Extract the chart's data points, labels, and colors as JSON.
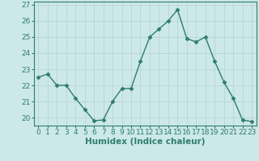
{
  "x": [
    0,
    1,
    2,
    3,
    4,
    5,
    6,
    7,
    8,
    9,
    10,
    11,
    12,
    13,
    14,
    15,
    16,
    17,
    18,
    19,
    20,
    21,
    22,
    23
  ],
  "y": [
    22.5,
    22.7,
    22.0,
    22.0,
    21.2,
    20.5,
    19.8,
    19.85,
    21.0,
    21.8,
    21.8,
    23.5,
    25.0,
    25.5,
    26.0,
    26.7,
    24.9,
    24.7,
    25.0,
    23.5,
    22.2,
    21.2,
    19.85,
    19.75
  ],
  "line_color": "#2e7d6e",
  "marker": "D",
  "marker_size": 2.5,
  "bg_color": "#cce8e8",
  "grid_color": "#b8d4d4",
  "xlabel": "Humidex (Indice chaleur)",
  "ylim": [
    19.5,
    27.2
  ],
  "xlim": [
    -0.5,
    23.5
  ],
  "yticks": [
    20,
    21,
    22,
    23,
    24,
    25,
    26,
    27
  ],
  "xticks": [
    0,
    1,
    2,
    3,
    4,
    5,
    6,
    7,
    8,
    9,
    10,
    11,
    12,
    13,
    14,
    15,
    16,
    17,
    18,
    19,
    20,
    21,
    22,
    23
  ],
  "xlabel_fontsize": 7.5,
  "tick_fontsize": 6.5,
  "tick_color": "#2e7d6e",
  "spine_color": "#2e7d6e"
}
